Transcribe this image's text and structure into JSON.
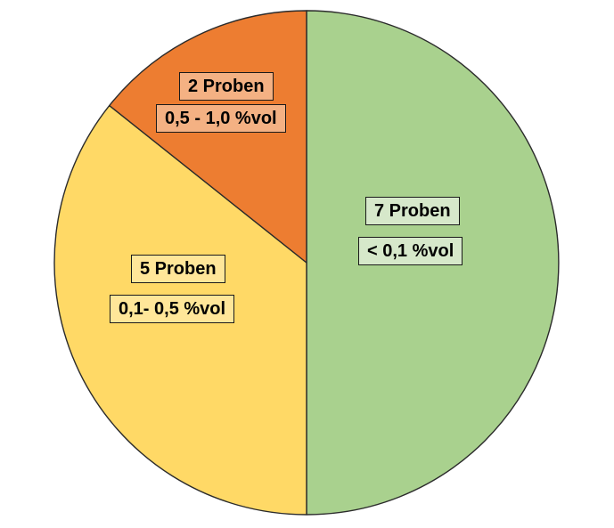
{
  "chart_data": {
    "type": "pie",
    "title": "",
    "total": 14,
    "direction": "clockwise",
    "start_angle_deg": 0,
    "legend_position": "none",
    "outline_color": "#2b2b2b",
    "background_color": "#ffffff",
    "slices": [
      {
        "count_label": "7 Proben",
        "range_label": "< 0,1 %vol",
        "value": 7,
        "percent": 50.0,
        "color": "#A9D18E",
        "label_bg": "#D6E8CA"
      },
      {
        "count_label": "5 Proben",
        "range_label": "0,1- 0,5 %vol",
        "value": 5,
        "percent": 35.7,
        "color": "#FFD966",
        "label_bg": "#FFE699"
      },
      {
        "count_label": "2 Proben",
        "range_label": "0,5 - 1,0 %vol",
        "value": 2,
        "percent": 14.3,
        "color": "#ED7D31",
        "label_bg": "#F4B183"
      }
    ]
  }
}
